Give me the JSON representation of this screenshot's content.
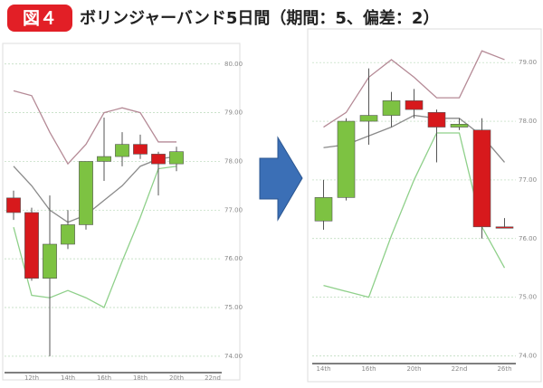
{
  "header": {
    "badge": "図４",
    "title": "ボリンジャーバンド5日間（期間：5、偏差：2）"
  },
  "chart_data": [
    {
      "type": "candlestick",
      "categories": [
        null,
        "12th",
        null,
        "14th",
        null,
        "16th",
        null,
        "18th",
        null,
        "20th",
        null,
        "22nd"
      ],
      "open": [
        77.25,
        76.95,
        75.6,
        76.3,
        76.7,
        78.0,
        78.1,
        78.35,
        78.15,
        77.95,
        null,
        null
      ],
      "high": [
        77.4,
        77.05,
        77.3,
        77.0,
        78.0,
        78.9,
        78.6,
        78.55,
        78.2,
        78.3,
        null,
        null
      ],
      "low": [
        76.8,
        75.55,
        74.0,
        76.2,
        76.6,
        77.6,
        77.9,
        78.05,
        77.3,
        77.8,
        null,
        null
      ],
      "close": [
        76.95,
        75.6,
        76.3,
        76.7,
        78.0,
        78.1,
        78.35,
        78.15,
        77.95,
        78.2,
        null,
        null
      ],
      "up_color": "#7dc242",
      "down_color": "#d7191c",
      "series": [
        {
          "color": "#b58a96",
          "values": [
            79.45,
            79.35,
            78.6,
            77.95,
            78.35,
            79.0,
            79.1,
            79.0,
            78.4,
            78.4,
            null,
            null
          ]
        },
        {
          "color": "#8a8a8a",
          "values": [
            77.9,
            77.5,
            77.0,
            76.75,
            76.9,
            77.2,
            77.5,
            77.9,
            78.05,
            78.1,
            null,
            null
          ]
        },
        {
          "color": "#8fd08a",
          "values": [
            76.65,
            75.25,
            75.2,
            75.35,
            75.2,
            75.0,
            75.95,
            76.85,
            77.85,
            77.9,
            null,
            null
          ]
        }
      ],
      "ylim": [
        73.7,
        80.2
      ],
      "yticks": [
        {
          "value": 74,
          "label": "74.00"
        },
        {
          "value": 75,
          "label": "75.00"
        },
        {
          "value": 76,
          "label": "76.00"
        },
        {
          "value": 77,
          "label": "77.00"
        },
        {
          "value": 78,
          "label": "78.00"
        },
        {
          "value": 79,
          "label": "79.00"
        },
        {
          "value": 80,
          "label": "80.00"
        }
      ],
      "grid": true
    },
    {
      "type": "candlestick",
      "categories": [
        "14th",
        null,
        "16th",
        null,
        "20th",
        null,
        "22nd",
        null,
        "26th"
      ],
      "open": [
        76.3,
        76.7,
        78.0,
        78.1,
        78.35,
        78.15,
        77.9,
        77.85,
        76.2
      ],
      "high": [
        77.0,
        78.05,
        78.9,
        78.5,
        78.55,
        78.2,
        78.05,
        78.05,
        76.35
      ],
      "low": [
        76.15,
        76.65,
        77.6,
        77.9,
        78.05,
        77.3,
        77.85,
        76.0,
        76.18
      ],
      "close": [
        76.7,
        78.0,
        78.1,
        78.35,
        78.2,
        77.9,
        77.95,
        76.2,
        76.18
      ],
      "up_color": "#7dc242",
      "down_color": "#d7191c",
      "series": [
        {
          "color": "#b58a96",
          "values": [
            77.9,
            78.15,
            78.75,
            79.05,
            78.75,
            78.4,
            78.4,
            79.2,
            79.05
          ]
        },
        {
          "color": "#8a8a8a",
          "values": [
            77.55,
            77.6,
            77.75,
            77.9,
            78.1,
            78.05,
            78.05,
            77.75,
            77.3
          ]
        },
        {
          "color": "#8fd08a",
          "values": [
            75.2,
            75.1,
            75.0,
            76.05,
            77.0,
            77.8,
            77.8,
            76.2,
            75.5
          ]
        }
      ],
      "ylim": [
        73.9,
        79.45
      ],
      "yticks": [
        {
          "value": 74,
          "label": "74.00"
        },
        {
          "value": 75,
          "label": "75.00"
        },
        {
          "value": 76,
          "label": "76.00"
        },
        {
          "value": 77,
          "label": "77.00"
        },
        {
          "value": 78,
          "label": "78.00"
        },
        {
          "value": 79,
          "label": "79.00"
        }
      ],
      "grid": true
    }
  ]
}
